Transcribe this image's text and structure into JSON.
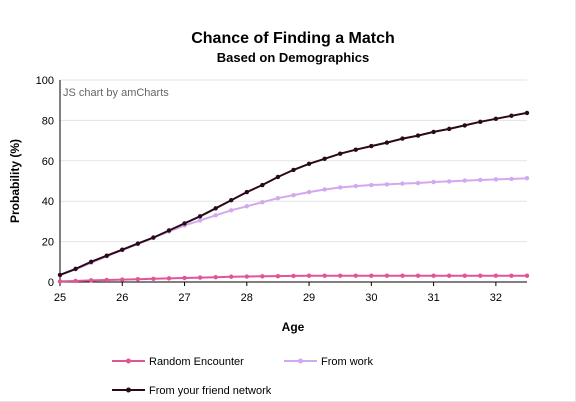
{
  "chart_data": {
    "type": "line",
    "title": "Chance of Finding a Match",
    "subtitle": "Based on Demographics",
    "xlabel": "Age",
    "ylabel": "Probability (%)",
    "credit": "JS chart by amCharts",
    "xlim": [
      25,
      32.5
    ],
    "ylim": [
      0,
      100
    ],
    "xticks": [
      "25",
      "26",
      "27",
      "28",
      "29",
      "30",
      "31",
      "32"
    ],
    "yticks": [
      "0",
      "20",
      "40",
      "60",
      "80",
      "100"
    ],
    "grid": true,
    "legend_position": "bottom",
    "x": [
      25,
      25.25,
      25.5,
      25.75,
      26,
      26.25,
      26.5,
      26.75,
      27,
      27.25,
      27.5,
      27.75,
      28,
      28.25,
      28.5,
      28.75,
      29,
      29.25,
      29.5,
      29.75,
      30,
      30.25,
      30.5,
      30.75,
      31,
      31.25,
      31.5,
      31.75,
      32,
      32.25,
      32.5
    ],
    "series": [
      {
        "name": "Random Encounter",
        "color": "#e0559a",
        "values": [
          0.3,
          0.5,
          0.8,
          1.0,
          1.2,
          1.4,
          1.6,
          1.8,
          2.0,
          2.2,
          2.4,
          2.6,
          2.7,
          2.8,
          2.9,
          3.0,
          3.1,
          3.1,
          3.1,
          3.1,
          3.1,
          3.1,
          3.1,
          3.1,
          3.1,
          3.1,
          3.1,
          3.1,
          3.1,
          3.1,
          3.1
        ]
      },
      {
        "name": "From work",
        "color": "#d4a8ec",
        "values": [
          3.5,
          6.3,
          9.5,
          12.7,
          15.8,
          18.8,
          22.0,
          25.0,
          28.0,
          30.5,
          33.0,
          35.5,
          37.5,
          39.5,
          41.5,
          43.0,
          44.5,
          45.8,
          46.8,
          47.5,
          48.0,
          48.3,
          48.7,
          49.0,
          49.5,
          49.8,
          50.2,
          50.5,
          50.8,
          51.0,
          51.4
        ]
      },
      {
        "name": "From your friend network",
        "color": "#2a0a1a",
        "values": [
          3.5,
          6.5,
          10.0,
          13.0,
          16.0,
          19.0,
          22.0,
          25.5,
          29.0,
          32.5,
          36.5,
          40.5,
          44.5,
          48.0,
          52.0,
          55.5,
          58.5,
          61.0,
          63.5,
          65.5,
          67.3,
          69.0,
          71.0,
          72.5,
          74.3,
          75.8,
          77.5,
          79.3,
          80.8,
          82.3,
          83.7
        ]
      }
    ]
  }
}
